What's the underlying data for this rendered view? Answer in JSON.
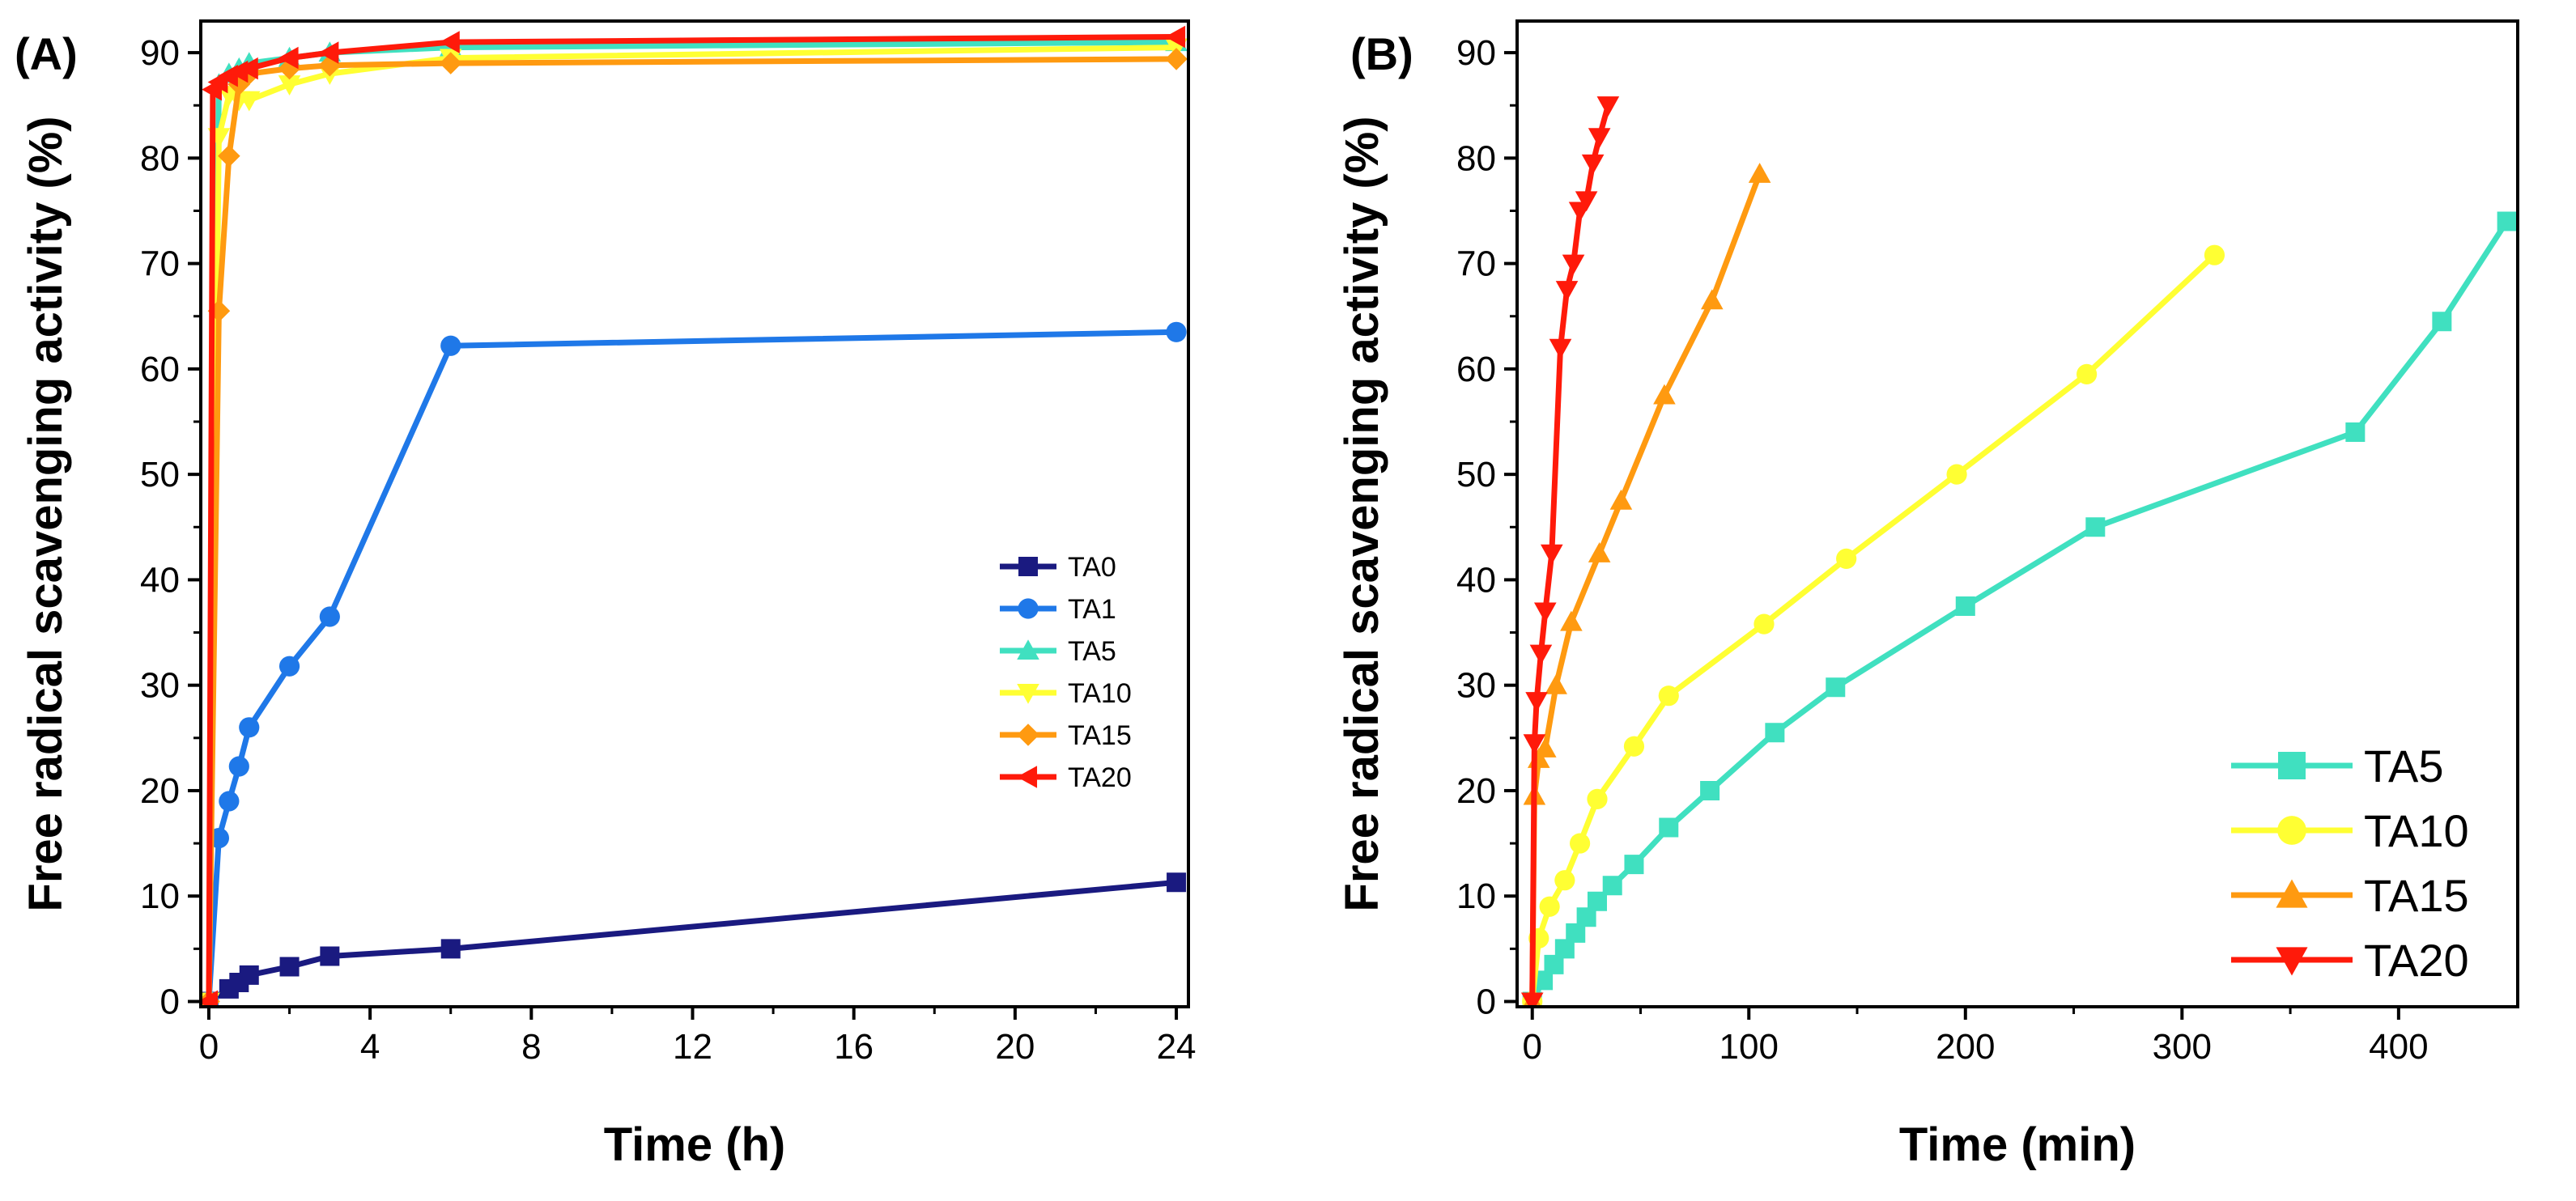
{
  "chart_data": [
    {
      "type": "line",
      "panel_label": "(A)",
      "xlabel": "Time (h)",
      "ylabel": "Free radical scavenging activity (%)",
      "xlim": [
        -0.2,
        24.3
      ],
      "ylim": [
        -0.5,
        93
      ],
      "xticks": [
        0,
        4,
        8,
        12,
        16,
        20,
        24
      ],
      "yticks": [
        0,
        10,
        20,
        30,
        40,
        50,
        60,
        70,
        80,
        90
      ],
      "legend_position": "center-right",
      "series": [
        {
          "name": "TA0",
          "color": "#1a1a80",
          "marker": "square",
          "x": [
            0,
            0.5,
            0.75,
            1,
            2,
            3,
            6,
            24
          ],
          "y": [
            0,
            1.2,
            1.8,
            2.5,
            3.3,
            4.3,
            5.0,
            11.3
          ]
        },
        {
          "name": "TA1",
          "color": "#1f78e8",
          "marker": "circle",
          "x": [
            0,
            0.25,
            0.5,
            0.75,
            1,
            2,
            3,
            6,
            24
          ],
          "y": [
            0,
            15.5,
            19.0,
            22.3,
            26.0,
            31.8,
            36.5,
            62.2,
            63.5
          ]
        },
        {
          "name": "TA5",
          "color": "#40e0c0",
          "marker": "triangle-up",
          "x": [
            0,
            0.25,
            0.5,
            0.75,
            1,
            2,
            3,
            6,
            24
          ],
          "y": [
            0,
            87.0,
            88.0,
            88.5,
            89.0,
            89.5,
            90.0,
            90.5,
            91.0
          ]
        },
        {
          "name": "TA10",
          "color": "#ffff33",
          "marker": "triangle-down",
          "x": [
            0,
            0.25,
            0.5,
            0.75,
            1,
            2,
            3,
            6,
            24
          ],
          "y": [
            0,
            82.0,
            86.0,
            85.5,
            85.5,
            87.0,
            88.0,
            89.5,
            90.5
          ]
        },
        {
          "name": "TA15",
          "color": "#ff9a10",
          "marker": "diamond",
          "x": [
            0,
            0.25,
            0.5,
            0.75,
            1,
            2,
            3,
            6,
            24
          ],
          "y": [
            0,
            65.5,
            80.2,
            87.0,
            88.0,
            88.5,
            88.8,
            89.0,
            89.4
          ]
        },
        {
          "name": "TA20",
          "color": "#ff1a0a",
          "marker": "triangle-left",
          "x": [
            0,
            0.1,
            0.25,
            0.5,
            0.75,
            1,
            2,
            3,
            6,
            24
          ],
          "y": [
            0,
            86.5,
            87.2,
            87.8,
            88.2,
            88.5,
            89.5,
            90.0,
            91.0,
            91.5
          ]
        }
      ]
    },
    {
      "type": "line",
      "panel_label": "(B)",
      "xlabel": "Time (min)",
      "ylabel": "Free radical scavenging activity (%)",
      "xlim": [
        -7,
        455
      ],
      "ylim": [
        -0.5,
        93
      ],
      "xticks": [
        0,
        100,
        200,
        300,
        400
      ],
      "yticks": [
        0,
        10,
        20,
        30,
        40,
        50,
        60,
        70,
        80,
        90
      ],
      "legend_position": "bottom-right",
      "series": [
        {
          "name": "TA5",
          "color": "#40e0c0",
          "marker": "square",
          "x": [
            0,
            5,
            10,
            15,
            20,
            25,
            30,
            37,
            47,
            63,
            82,
            112,
            140,
            200,
            260,
            380,
            420,
            450
          ],
          "y": [
            0,
            2,
            3.5,
            5,
            6.5,
            8,
            9.5,
            11,
            13,
            16.5,
            20,
            25.5,
            29.8,
            37.5,
            45,
            54,
            64.5,
            74
          ]
        },
        {
          "name": "TA10",
          "color": "#ffff33",
          "marker": "circle",
          "x": [
            0,
            3,
            8,
            15,
            22,
            30,
            47,
            63,
            107,
            145,
            196,
            256,
            315
          ],
          "y": [
            0,
            6,
            9,
            11.5,
            15,
            19.2,
            24.2,
            29,
            35.8,
            42,
            50,
            59.5,
            70.8
          ]
        },
        {
          "name": "TA15",
          "color": "#ff9a10",
          "marker": "triangle-up",
          "x": [
            0,
            1,
            3,
            6,
            11,
            18,
            31,
            41,
            61,
            83,
            105
          ],
          "y": [
            0,
            19.5,
            23,
            24,
            30,
            36,
            42.5,
            47.5,
            57.5,
            66.5,
            78.5
          ]
        },
        {
          "name": "TA20",
          "color": "#ff1a0a",
          "marker": "triangle-down",
          "x": [
            0,
            1,
            2,
            4,
            6,
            9,
            13,
            16,
            19,
            22,
            25,
            28,
            31,
            35
          ],
          "y": [
            0,
            24.5,
            28.5,
            33,
            37,
            42.5,
            62,
            67.5,
            70,
            75,
            76,
            79.5,
            82,
            85
          ]
        }
      ]
    }
  ]
}
